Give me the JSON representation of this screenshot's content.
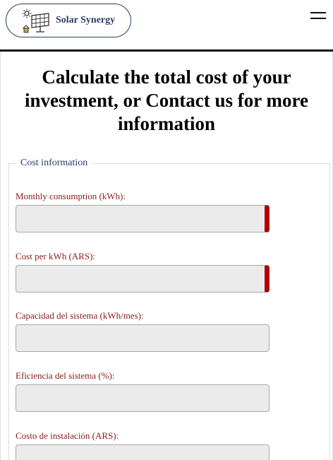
{
  "header": {
    "logo_text": "Solar Synergy",
    "menu_icon": "hamburger-menu-icon"
  },
  "main": {
    "title": "Calculate the total cost of your investment, or Contact us for more information"
  },
  "cost_form": {
    "legend": "Cost information",
    "fields": [
      {
        "label": "Monthly consumption (kWh):",
        "value": "",
        "required": true
      },
      {
        "label": "Cost per kWh (ARS):",
        "value": "",
        "required": true
      },
      {
        "label": "Capacidad del sistema (kWh/mes):",
        "value": "",
        "required": false
      },
      {
        "label": "Eficiencia del sistema (%):",
        "value": "",
        "required": false
      },
      {
        "label": "Costo de instalación (ARS):",
        "value": "",
        "required": false
      }
    ]
  },
  "colors": {
    "brand": "#2a3d66",
    "label": "#8b1a1a",
    "required_marker": "#b00000"
  }
}
